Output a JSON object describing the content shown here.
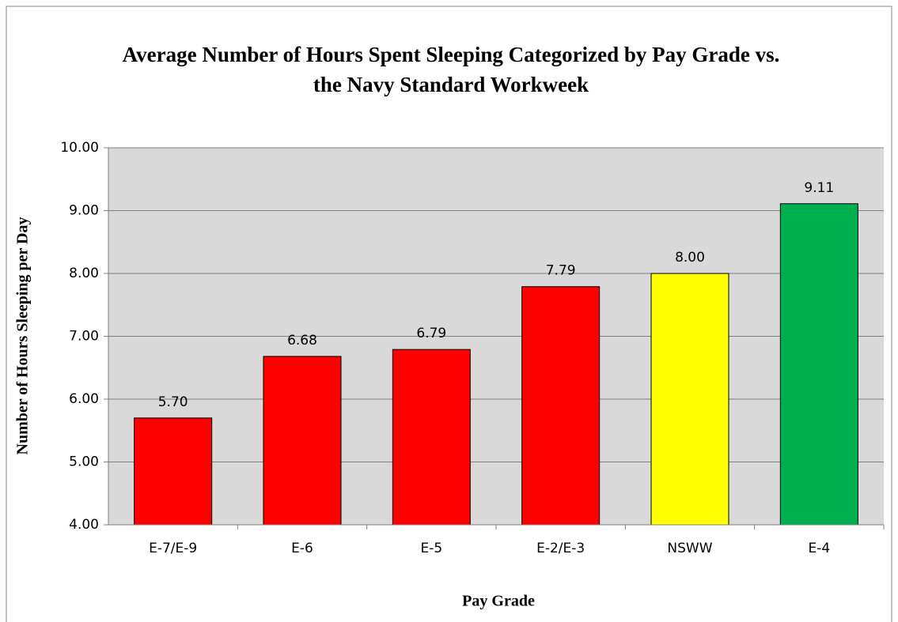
{
  "chart_data": {
    "type": "bar",
    "title": "Average Number of Hours Spent Sleeping Categorized by Pay Grade vs. the Navy Standard Workweek",
    "x_label": "Pay Grade",
    "y_label": "Number of Hours Sleeping per Day",
    "categories": [
      "E-7/E-9",
      "E-6",
      "E-5",
      "E-2/E-3",
      "NSWW",
      "E-4"
    ],
    "values": [
      5.7,
      6.68,
      6.79,
      7.79,
      8,
      9.11
    ],
    "value_labels": [
      "5.70",
      "6.68",
      "6.79",
      "7.79",
      "8.00",
      "9.11"
    ],
    "colors": [
      "#ff0000",
      "#ff0000",
      "#ff0000",
      "#ff0000",
      "#ffff00",
      "#00b050"
    ],
    "ylim": [
      4,
      10
    ],
    "yticks": [
      {
        "value": 4,
        "label": "4.00"
      },
      {
        "value": 5,
        "label": "5.00"
      },
      {
        "value": 6,
        "label": "6.00"
      },
      {
        "value": 7,
        "label": "7.00"
      },
      {
        "value": 8,
        "label": "8.00"
      },
      {
        "value": 9,
        "label": "9.00"
      },
      {
        "value": 10,
        "label": "10.00"
      }
    ],
    "grid": true
  }
}
